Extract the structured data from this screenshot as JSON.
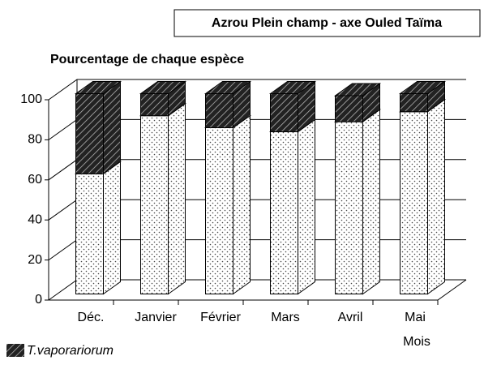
{
  "chart_data": {
    "type": "bar3d_stacked",
    "title": "Azrou Plein champ - axe Ouled Taïma",
    "ylabel": "Pourcentage de chaque espèce",
    "xlabel": "Mois",
    "categories": [
      "Déc.",
      "Janvier",
      "Février",
      "Mars",
      "Avril",
      "Mai"
    ],
    "series": [
      {
        "color": "#ffffff",
        "pattern": "dots",
        "values": [
          60,
          89,
          83,
          81,
          86,
          91
        ]
      },
      {
        "name": "T.vaporariorum",
        "color": "#333333",
        "pattern": "hatch",
        "values": [
          40,
          11,
          17,
          19,
          13,
          9
        ]
      }
    ],
    "ylim": [
      0,
      100
    ],
    "yticks": [
      0,
      20,
      40,
      60,
      80,
      100
    ],
    "grid": true
  }
}
